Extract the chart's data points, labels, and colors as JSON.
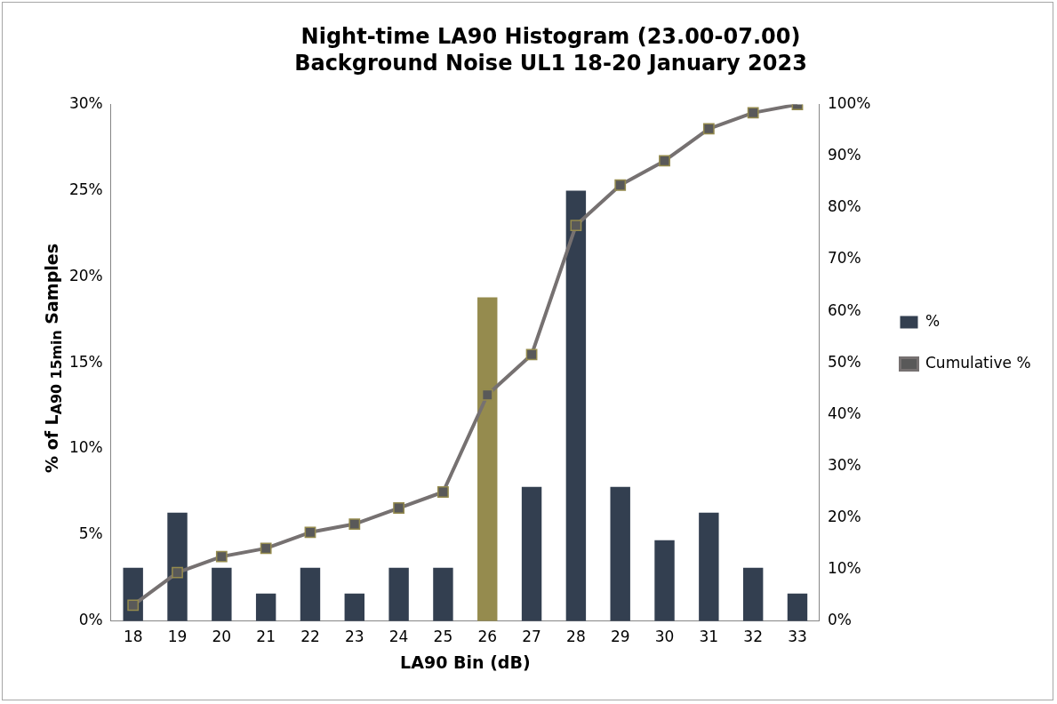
{
  "chart_data": {
    "type": "bar",
    "title": "Night-time LA90 Histogram (23.00-07.00)",
    "subtitle": "Background Noise UL1 18-20 January 2023",
    "xlabel": "LA90 Bin (dB)",
    "ylabel": "% of L$_{A90 15min}$ Samples",
    "categories": [
      "18",
      "19",
      "20",
      "21",
      "22",
      "23",
      "24",
      "25",
      "26",
      "27",
      "28",
      "29",
      "30",
      "31",
      "32",
      "33"
    ],
    "series": [
      {
        "name": "%",
        "color": "#333f50",
        "colors": [
          "#333f50",
          "#333f50",
          "#333f50",
          "#333f50",
          "#333f50",
          "#333f50",
          "#333f50",
          "#333f50",
          "#958b4e",
          "#333f50",
          "#333f50",
          "#333f50",
          "#333f50",
          "#333f50",
          "#333f50",
          "#333f50"
        ],
        "values": [
          3.1,
          6.3,
          3.1,
          1.6,
          3.1,
          1.6,
          3.1,
          3.1,
          18.8,
          7.8,
          25,
          7.8,
          4.7,
          6.3,
          3.1,
          1.6
        ]
      },
      {
        "name": "Cumulative %",
        "type": "line",
        "axis": "y2",
        "color": "#767171",
        "marker": "square",
        "values": [
          3.1,
          9.4,
          12.5,
          14.1,
          17.2,
          18.8,
          21.9,
          25,
          43.8,
          51.6,
          76.6,
          84.4,
          89.1,
          95.3,
          98.4,
          100
        ]
      }
    ],
    "ylim": [
      0,
      30
    ],
    "yticks": [
      {
        "value": 0,
        "label": "0%"
      },
      {
        "value": 5,
        "label": "5%"
      },
      {
        "value": 10,
        "label": "10%"
      },
      {
        "value": 15,
        "label": "15%"
      },
      {
        "value": 20,
        "label": "20%"
      },
      {
        "value": 25,
        "label": "25%"
      },
      {
        "value": 30,
        "label": "30%"
      }
    ],
    "y2lim": [
      0,
      100
    ],
    "y2ticks": [
      {
        "value": 0,
        "label": "0%"
      },
      {
        "value": 10,
        "label": "10%"
      },
      {
        "value": 20,
        "label": "20%"
      },
      {
        "value": 30,
        "label": "30%"
      },
      {
        "value": 40,
        "label": "40%"
      },
      {
        "value": 50,
        "label": "50%"
      },
      {
        "value": 60,
        "label": "60%"
      },
      {
        "value": 70,
        "label": "70%"
      },
      {
        "value": 80,
        "label": "80%"
      },
      {
        "value": 90,
        "label": "90%"
      },
      {
        "value": 100,
        "label": "100%"
      }
    ],
    "legend": "right"
  }
}
